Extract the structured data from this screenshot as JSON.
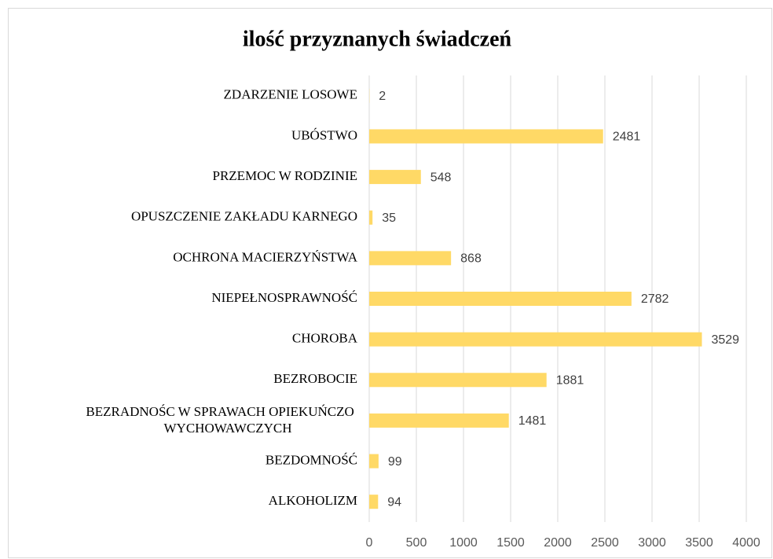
{
  "chart_data": {
    "type": "bar",
    "orientation": "horizontal",
    "title": "ilość przyznanych  świadczeń",
    "categories": [
      "ZDARZENIE LOSOWE",
      "UBÓSTWO",
      "PRZEMOC W RODZINIE",
      "OPUSZCZENIE ZAKŁADU KARNEGO",
      "OCHRONA MACIERZYŃSTWA",
      "NIEPEŁNOSPRAWNOŚĆ",
      "CHOROBA",
      "BEZROBOCIE",
      "BEZRADNOŚC W SPRAWACH OPIEKUŃCZO WYCHOWAWCZYCH",
      "BEZDOMNOŚĆ",
      "ALKOHOLIZM"
    ],
    "values": [
      2,
      2481,
      548,
      35,
      868,
      2782,
      3529,
      1881,
      1481,
      99,
      94
    ],
    "color": "#ffd966",
    "xlim": [
      0,
      4000
    ],
    "xticks": [
      0,
      500,
      1000,
      1500,
      2000,
      2500,
      3000,
      3500,
      4000
    ],
    "grid": true
  }
}
